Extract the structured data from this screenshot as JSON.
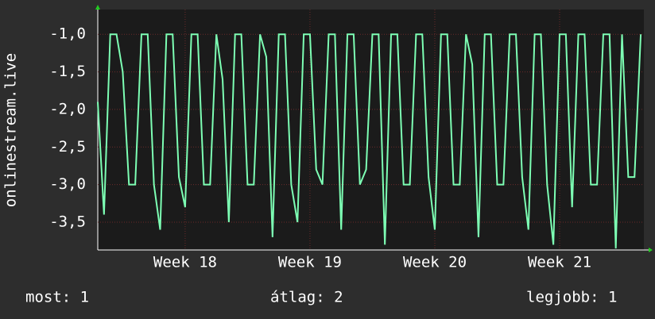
{
  "chart_data": {
    "type": "line",
    "y_label": "onlinestream.live",
    "color": "#7dffb4",
    "x": [
      17.3,
      17.35,
      17.4,
      17.45,
      17.5,
      17.55,
      17.6,
      17.65,
      17.7,
      17.75,
      17.8,
      17.85,
      17.9,
      17.95,
      18.0,
      18.05,
      18.1,
      18.15,
      18.2,
      18.25,
      18.3,
      18.35,
      18.4,
      18.45,
      18.5,
      18.55,
      18.6,
      18.65,
      18.7,
      18.75,
      18.8,
      18.85,
      18.9,
      18.95,
      19.0,
      19.05,
      19.1,
      19.15,
      19.2,
      19.25,
      19.3,
      19.35,
      19.4,
      19.45,
      19.5,
      19.55,
      19.6,
      19.65,
      19.7,
      19.75,
      19.8,
      19.85,
      19.9,
      19.95,
      20.0,
      20.05,
      20.1,
      20.15,
      20.2,
      20.25,
      20.3,
      20.35,
      20.4,
      20.45,
      20.5,
      20.55,
      20.6,
      20.65,
      20.7,
      20.75,
      20.8,
      20.85,
      20.9,
      20.95,
      21.0,
      21.05,
      21.1,
      21.15,
      21.2,
      21.25,
      21.3,
      21.35,
      21.4,
      21.45,
      21.5,
      21.55,
      21.6,
      21.65
    ],
    "values": [
      -1.9,
      -3.4,
      -1,
      -1,
      -1.5,
      -3,
      -3,
      -1,
      -1,
      -3,
      -3.6,
      -1,
      -1,
      -2.9,
      -3.3,
      -1,
      -1,
      -3,
      -3,
      -1,
      -1.6,
      -3.5,
      -1,
      -1,
      -3,
      -3,
      -1,
      -1.3,
      -3.7,
      -1,
      -1,
      -3,
      -3.5,
      -1,
      -1,
      -2.8,
      -3,
      -1,
      -1,
      -3.6,
      -1,
      -1,
      -3,
      -2.8,
      -1,
      -1,
      -3.8,
      -1,
      -1,
      -3,
      -3,
      -1,
      -1,
      -2.9,
      -3.6,
      -1,
      -1,
      -3,
      -3,
      -1,
      -1.4,
      -3.7,
      -1,
      -1,
      -3,
      -3,
      -1,
      -1,
      -2.9,
      -3.6,
      -1,
      -1,
      -3,
      -3.8,
      -1,
      -1,
      -3.3,
      -1,
      -1,
      -3,
      -3,
      -1,
      -1,
      -3.85,
      -1,
      -2.9,
      -2.9,
      -1
    ],
    "xlim": [
      17.3,
      21.675
    ],
    "xticks": [
      {
        "value": 18,
        "label": "Week 18"
      },
      {
        "value": 19,
        "label": "Week 19"
      },
      {
        "value": 20,
        "label": "Week 20"
      },
      {
        "value": 21,
        "label": "Week 21"
      }
    ],
    "ylim": [
      -3.87,
      -0.67
    ],
    "yticks": [
      {
        "value": -1,
        "label": "-1,0"
      },
      {
        "value": -1.5,
        "label": "-1,5"
      },
      {
        "value": -2,
        "label": "-2,0"
      },
      {
        "value": -2.5,
        "label": "-2,5"
      },
      {
        "value": -3,
        "label": "-3,0"
      },
      {
        "value": -3.5,
        "label": "-3,5"
      }
    ],
    "grid": true
  },
  "footer": {
    "current": "most: 1",
    "average": "átlag: 2",
    "best": "legjobb: 1"
  }
}
